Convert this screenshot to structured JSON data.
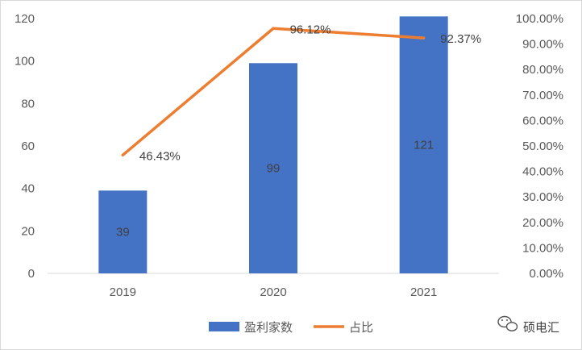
{
  "chart_data": {
    "type": "bar",
    "categories": [
      "2019",
      "2020",
      "2021"
    ],
    "series": [
      {
        "name": "盈利家数",
        "type": "bar",
        "axis": "left",
        "values": [
          39,
          99,
          121
        ],
        "labels": [
          "39",
          "99",
          "121"
        ],
        "color": "#4472c4"
      },
      {
        "name": "占比",
        "type": "line",
        "axis": "right",
        "values": [
          46.43,
          96.12,
          92.37
        ],
        "labels": [
          "46.43%",
          "96.12%",
          "92.37%"
        ],
        "color": "#ed7d31"
      }
    ],
    "ylim": [
      0,
      120
    ],
    "y2lim": [
      0,
      100
    ],
    "y_ticks": [
      "0",
      "20",
      "40",
      "60",
      "80",
      "100",
      "120"
    ],
    "y2_ticks": [
      "0.00%",
      "10.00%",
      "20.00%",
      "30.00%",
      "40.00%",
      "50.00%",
      "60.00%",
      "70.00%",
      "80.00%",
      "90.00%",
      "100.00%"
    ],
    "grid": false,
    "legend": "bottom"
  },
  "watermark": {
    "text": "硕电汇",
    "icon": "wechat-icon"
  }
}
